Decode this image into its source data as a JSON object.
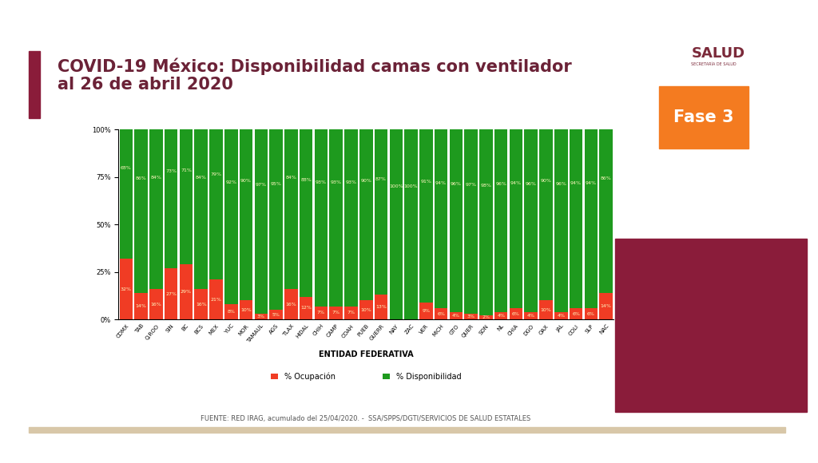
{
  "chart_data": {
    "type": "bar",
    "title": "COVID-19 México: Disponibilidad camas con ventilador\nal 26 de abril 2020",
    "x_label": "ENTIDAD FEDERATIVA",
    "annotations": [
      "SALUD",
      "SECRETARÍA DE SALUD",
      "Fase 3",
      "FUENTE: RED IRAG, acumulado del 25/04/2020. -  SSA/SPPS/DGTI/SERVICIOS DE SALUD ESTATALES"
    ],
    "categories": [
      "CDMX",
      "TAB",
      "Q.ROO",
      "SIN",
      "BC",
      "BCS",
      "MEX",
      "YUC",
      "MOR",
      "TAMAUL",
      "AGS",
      "TLAX",
      "HIDAL",
      "CHIH",
      "CAMP",
      "COAH",
      "PUEB",
      "GUERR",
      "NAY",
      "ZAC",
      "VER",
      "MICH",
      "GTO",
      "QUER",
      "SON",
      "NL",
      "CHIA",
      "DGO",
      "OAX",
      "JAL",
      "COLI",
      "SLP",
      "NAC"
    ],
    "series": [
      {
        "name": "% Ocupación",
        "color": "#f03c24",
        "values": [
          32,
          14,
          16,
          27,
          29,
          16,
          21,
          8,
          10,
          3,
          5,
          16,
          12,
          7,
          7,
          7,
          10,
          13,
          0,
          0,
          9,
          6,
          4,
          3,
          2,
          4,
          6,
          4,
          10,
          4,
          6,
          6,
          14
        ],
        "value_labels": [
          "32%",
          "14%",
          "16%",
          "27%",
          "29%",
          "16%",
          "21%",
          "8%",
          "10%",
          "3%",
          "5%",
          "16%",
          "12%",
          "7%",
          "7%",
          "7%",
          "10%",
          "13%",
          null,
          null,
          "9%",
          "6%",
          "4%",
          "3%",
          "2%",
          "4%",
          "6%",
          "4%",
          "10%",
          "4%",
          "6%",
          "6%",
          "14%"
        ]
      },
      {
        "name": "% Disponibilidad",
        "color": "#1e9a1e",
        "values": [
          68,
          86,
          84,
          73,
          71,
          84,
          79,
          92,
          90,
          97,
          95,
          84,
          88,
          93,
          93,
          93,
          90,
          87,
          100,
          100,
          91,
          94,
          96,
          97,
          98,
          96,
          94,
          96,
          90,
          96,
          94,
          94,
          86
        ],
        "value_labels": [
          "68%",
          "86%",
          "84%",
          "73%",
          "71%",
          "84%",
          "79%",
          "92%",
          "90%",
          "97%",
          "95%",
          "84%",
          "88%",
          "93%",
          "93%",
          "93%",
          "90%",
          "87%",
          "100%",
          "100%",
          "91%",
          "94%",
          "96%",
          "97%",
          "98%",
          "96%",
          "94%",
          "96%",
          "90%",
          "96%",
          "94%",
          "94%",
          "86%"
        ]
      }
    ],
    "stacked": true,
    "data_labels": true,
    "grid": false,
    "legend": "lower center",
    "ylim": [
      0,
      100
    ],
    "yticks": [
      {
        "value": 0,
        "label": "0%"
      },
      {
        "value": 25,
        "label": "25%"
      },
      {
        "value": 50,
        "label": "50%"
      },
      {
        "value": 75,
        "label": "75%"
      },
      {
        "value": 100,
        "label": "100%"
      }
    ]
  }
}
